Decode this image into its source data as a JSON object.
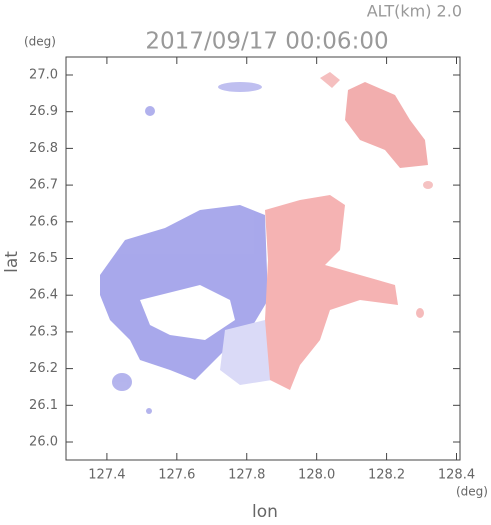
{
  "chart_data": {
    "type": "radar-field",
    "title": "2017/09/17 00:06:00",
    "subtitle": "ALT(km) 2.0",
    "x_label": "lon",
    "y_label": "lat",
    "x_unit": "(deg)",
    "y_unit": "(deg)",
    "xlim": [
      127.283,
      128.41
    ],
    "ylim": [
      25.951,
      27.049
    ],
    "xticks": [
      127.4,
      127.6,
      127.8,
      {
        "value": 128,
        "label": "128.0"
      },
      128.2,
      128.4
    ],
    "yticks": [
      {
        "value": 26,
        "label": "26.0"
      },
      26.1,
      26.2,
      26.3,
      26.4,
      26.5,
      26.6,
      26.7,
      26.8,
      26.9,
      {
        "value": 27,
        "label": "27.0"
      }
    ]
  }
}
